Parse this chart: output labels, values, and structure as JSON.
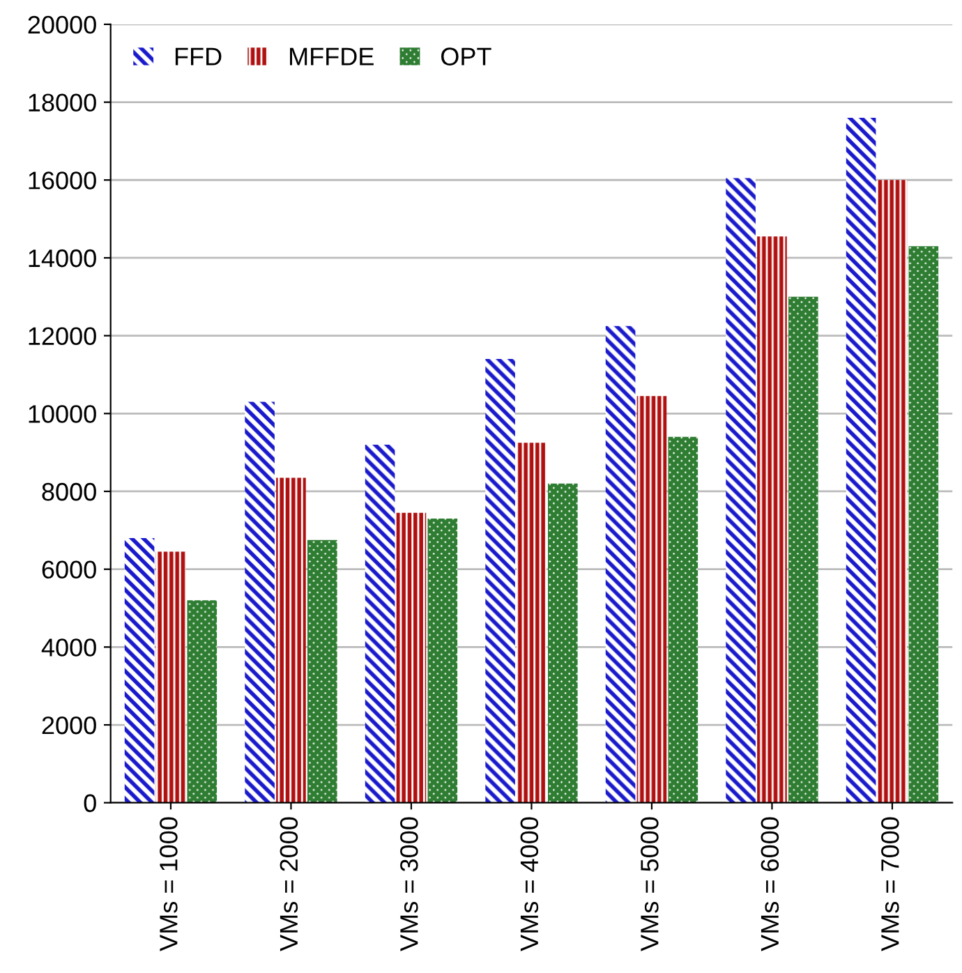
{
  "chart_data": {
    "type": "bar",
    "categories": [
      "VMs = 1000",
      "VMs = 2000",
      "VMs = 3000",
      "VMs = 4000",
      "VMs = 5000",
      "VMs = 6000",
      "VMs = 7000"
    ],
    "series": [
      {
        "name": "FFD",
        "color": "#1a1acc",
        "values": [
          6800,
          10300,
          9200,
          11400,
          12250,
          16050,
          17600
        ]
      },
      {
        "name": "MFFDE",
        "color": "#b01010",
        "values": [
          6450,
          8350,
          7450,
          9250,
          10450,
          14550,
          16000
        ]
      },
      {
        "name": "OPT",
        "color": "#2e7d32",
        "values": [
          5200,
          6750,
          7300,
          8200,
          9400,
          13000,
          14300
        ]
      }
    ],
    "ylim": [
      0,
      20000
    ],
    "yticks": [
      0,
      2000,
      4000,
      6000,
      8000,
      10000,
      12000,
      14000,
      16000,
      18000,
      20000
    ],
    "grid": "y",
    "legend": "top left"
  }
}
